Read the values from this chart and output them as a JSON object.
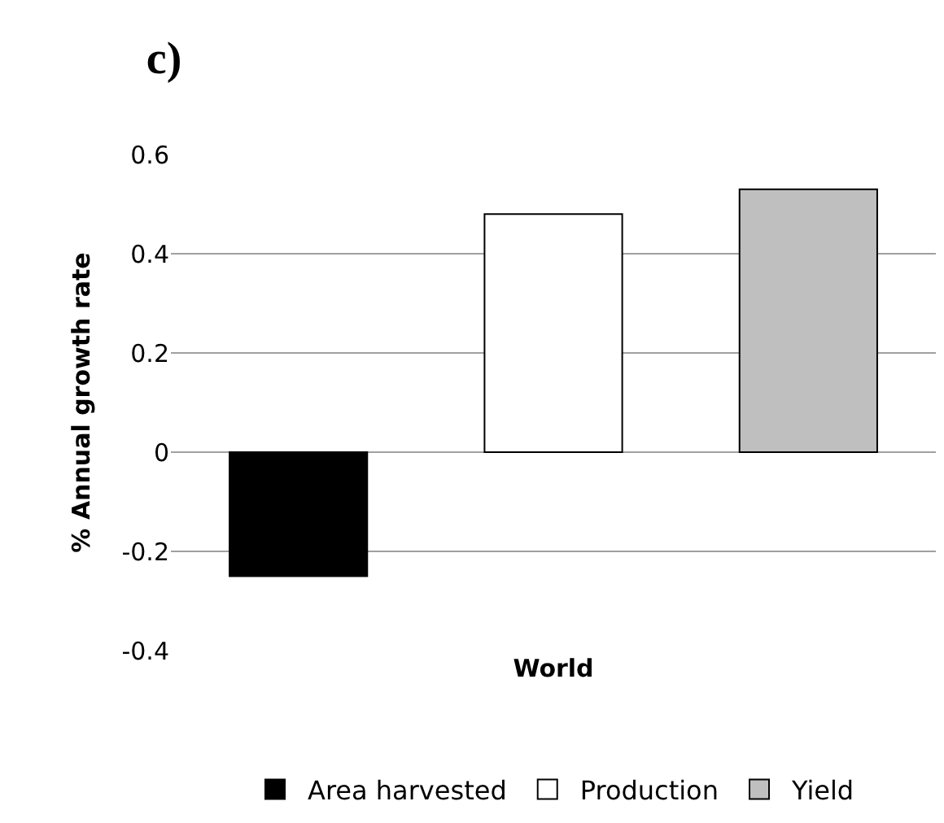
{
  "chart_data": {
    "type": "bar",
    "title": "c)",
    "xlabel": "World",
    "ylabel": "% Annual growth rate",
    "categories": [
      null
    ],
    "series": [
      {
        "name": "Area harvested",
        "color": "#000000",
        "values": [
          -0.25
        ]
      },
      {
        "name": "Production",
        "color": "#ffffff",
        "values": [
          0.48
        ]
      },
      {
        "name": "Yield",
        "color": "#bfbfbf",
        "values": [
          0.53
        ]
      }
    ],
    "ylim": [
      -0.4,
      0.6
    ],
    "yticks": [
      -0.4,
      -0.2,
      0,
      0.2,
      0.4,
      0.6
    ],
    "grid": "y",
    "legend": "bottom"
  }
}
